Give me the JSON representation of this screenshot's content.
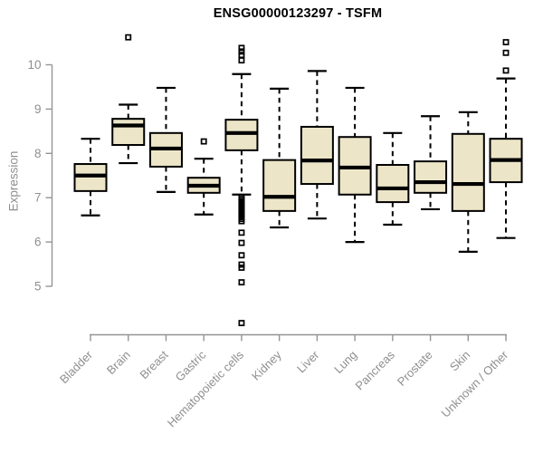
{
  "chart_data": {
    "type": "boxplot",
    "title": "ENSG00000123297 - TSFM",
    "xlabel": "",
    "ylabel": "Expression",
    "ylim": [
      4.0,
      10.8
    ],
    "yticks": [
      5,
      6,
      7,
      8,
      9,
      10
    ],
    "grid": false,
    "legend": null,
    "colors": {
      "box_fill": "#ECE5C8",
      "stroke": "#000000",
      "axis": "#949494",
      "text": "#8F8F8F",
      "title": "#000000",
      "background": "#FFFFFF"
    },
    "categories": [
      "Bladder",
      "Brain",
      "Breast",
      "Gastric",
      "Hematopoietic cells",
      "Kidney",
      "Liver",
      "Lung",
      "Pancreas",
      "Prostate",
      "Skin",
      "Unknown / Other"
    ],
    "boxes": [
      {
        "id": "bladder",
        "label": "Bladder",
        "whisker_low": 6.6,
        "q1": 7.15,
        "median": 7.5,
        "q3": 7.76,
        "whisker_high": 8.33,
        "outliers": []
      },
      {
        "id": "brain",
        "label": "Brain",
        "whisker_low": 7.78,
        "q1": 8.19,
        "median": 8.63,
        "q3": 8.78,
        "whisker_high": 9.1,
        "outliers": [
          10.62
        ]
      },
      {
        "id": "breast",
        "label": "Breast",
        "whisker_low": 7.13,
        "q1": 7.7,
        "median": 8.11,
        "q3": 8.46,
        "whisker_high": 9.48,
        "outliers": []
      },
      {
        "id": "gastric",
        "label": "Gastric",
        "whisker_low": 6.62,
        "q1": 7.11,
        "median": 7.27,
        "q3": 7.45,
        "whisker_high": 7.88,
        "outliers": [
          8.27
        ]
      },
      {
        "id": "hematopoietic-cells",
        "label": "Hematopoietic cells",
        "whisker_low": 7.07,
        "q1": 8.07,
        "median": 8.46,
        "q3": 8.76,
        "whisker_high": 9.79,
        "outliers": [
          10.38,
          10.3,
          10.22,
          10.1,
          7.0,
          6.96,
          6.92,
          6.88,
          6.84,
          6.8,
          6.76,
          6.72,
          6.68,
          6.64,
          6.6,
          6.56,
          6.52,
          6.47,
          6.21,
          5.98,
          5.7,
          5.49,
          5.42,
          5.09,
          4.17
        ]
      },
      {
        "id": "kidney",
        "label": "Kidney",
        "whisker_low": 6.33,
        "q1": 6.7,
        "median": 7.02,
        "q3": 7.85,
        "whisker_high": 9.46,
        "outliers": []
      },
      {
        "id": "liver",
        "label": "Liver",
        "whisker_low": 6.53,
        "q1": 7.31,
        "median": 7.84,
        "q3": 8.6,
        "whisker_high": 9.86,
        "outliers": []
      },
      {
        "id": "lung",
        "label": "Lung",
        "whisker_low": 6.0,
        "q1": 7.07,
        "median": 7.68,
        "q3": 8.37,
        "whisker_high": 9.48,
        "outliers": []
      },
      {
        "id": "pancreas",
        "label": "Pancreas",
        "whisker_low": 6.39,
        "q1": 6.9,
        "median": 7.21,
        "q3": 7.74,
        "whisker_high": 8.46,
        "outliers": []
      },
      {
        "id": "prostate",
        "label": "Prostate",
        "whisker_low": 6.74,
        "q1": 7.11,
        "median": 7.35,
        "q3": 7.82,
        "whisker_high": 8.84,
        "outliers": []
      },
      {
        "id": "skin",
        "label": "Skin",
        "whisker_low": 5.78,
        "q1": 6.7,
        "median": 7.31,
        "q3": 8.44,
        "whisker_high": 8.93,
        "outliers": []
      },
      {
        "id": "unknown-other",
        "label": "Unknown / Other",
        "whisker_low": 6.09,
        "q1": 7.35,
        "median": 7.85,
        "q3": 8.33,
        "whisker_high": 9.69,
        "outliers": [
          10.51,
          10.27,
          9.87
        ]
      }
    ]
  }
}
